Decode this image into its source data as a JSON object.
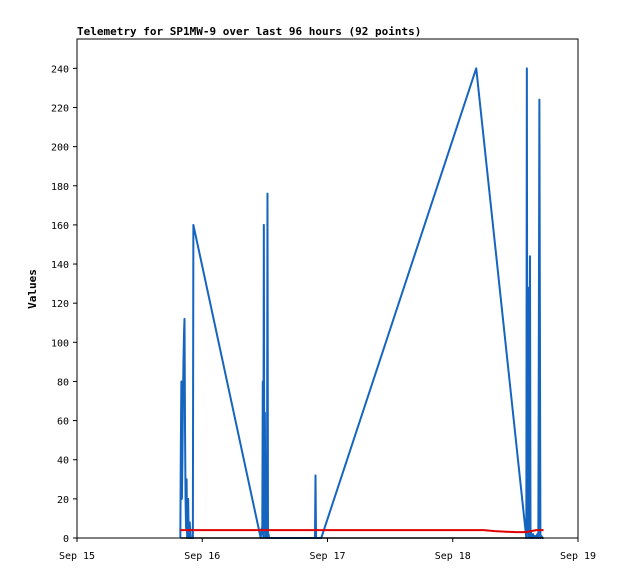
{
  "chart_data": {
    "type": "line",
    "title": "Telemetry for SP1MW-9 over last 96 hours (92 points)",
    "xlabel": "",
    "ylabel": "Values",
    "x_ticks": [
      "Sep 15",
      "Sep 16",
      "Sep 17",
      "Sep 18",
      "Sep 19"
    ],
    "y_ticks": [
      0,
      20,
      40,
      60,
      80,
      100,
      120,
      140,
      160,
      180,
      200,
      220,
      240
    ],
    "xlim_hours": [
      0,
      96
    ],
    "ylim": [
      0,
      255
    ],
    "grid": false,
    "legend": "none",
    "colors": {
      "axis": "#000000",
      "series_main": "#1565c0",
      "series_low": "#e00000",
      "series_base": "#000000"
    },
    "series": [
      {
        "color": "#1565c0",
        "x_hours": [
          19.8,
          19.9,
          20.0,
          20.1,
          20.2,
          20.3,
          20.4,
          20.5,
          20.6,
          20.7,
          20.8,
          20.9,
          21.0,
          21.1,
          21.2,
          21.3,
          21.4,
          21.6,
          21.8,
          22.2,
          22.3,
          35.2,
          35.4,
          35.5,
          35.6,
          35.7,
          35.8,
          35.9,
          36.0,
          36.1,
          36.2,
          36.3,
          36.4,
          36.5,
          36.6,
          36.7,
          36.8,
          45.6,
          45.7,
          45.8,
          46.8,
          76.5,
          86.1,
          86.2,
          86.3,
          86.4,
          86.5,
          86.6,
          86.7,
          86.8,
          86.9,
          87.0,
          87.1,
          87.2,
          87.3,
          87.4,
          87.6,
          87.8,
          88.0,
          88.2,
          88.4,
          88.6,
          88.8,
          89.0,
          89.2,
          89.4
        ],
        "values": [
          0,
          48,
          80,
          20,
          40,
          70,
          90,
          104,
          112,
          55,
          20,
          5,
          30,
          0,
          5,
          20,
          0,
          8,
          0,
          0,
          160,
          0,
          5,
          2,
          80,
          0,
          160,
          3,
          64,
          0,
          2,
          1,
          0,
          176,
          0,
          2,
          0,
          0,
          32,
          0,
          0,
          240,
          0,
          240,
          3,
          128,
          0,
          2,
          72,
          144,
          0,
          3,
          0,
          1,
          0,
          2,
          0,
          1,
          0,
          2,
          0,
          224,
          0,
          1,
          0,
          0
        ]
      },
      {
        "color": "#e00000",
        "x_hours": [
          19.8,
          22.0,
          30.0,
          50.0,
          70.0,
          78.0,
          80.0,
          84.0,
          86.0,
          88.0,
          89.4
        ],
        "values": [
          4,
          4,
          4,
          4,
          4,
          4,
          3.5,
          3,
          3,
          4,
          4
        ]
      },
      {
        "color": "#000000",
        "x_hours": [
          19.8,
          89.4
        ],
        "values": [
          0,
          0
        ]
      }
    ]
  }
}
